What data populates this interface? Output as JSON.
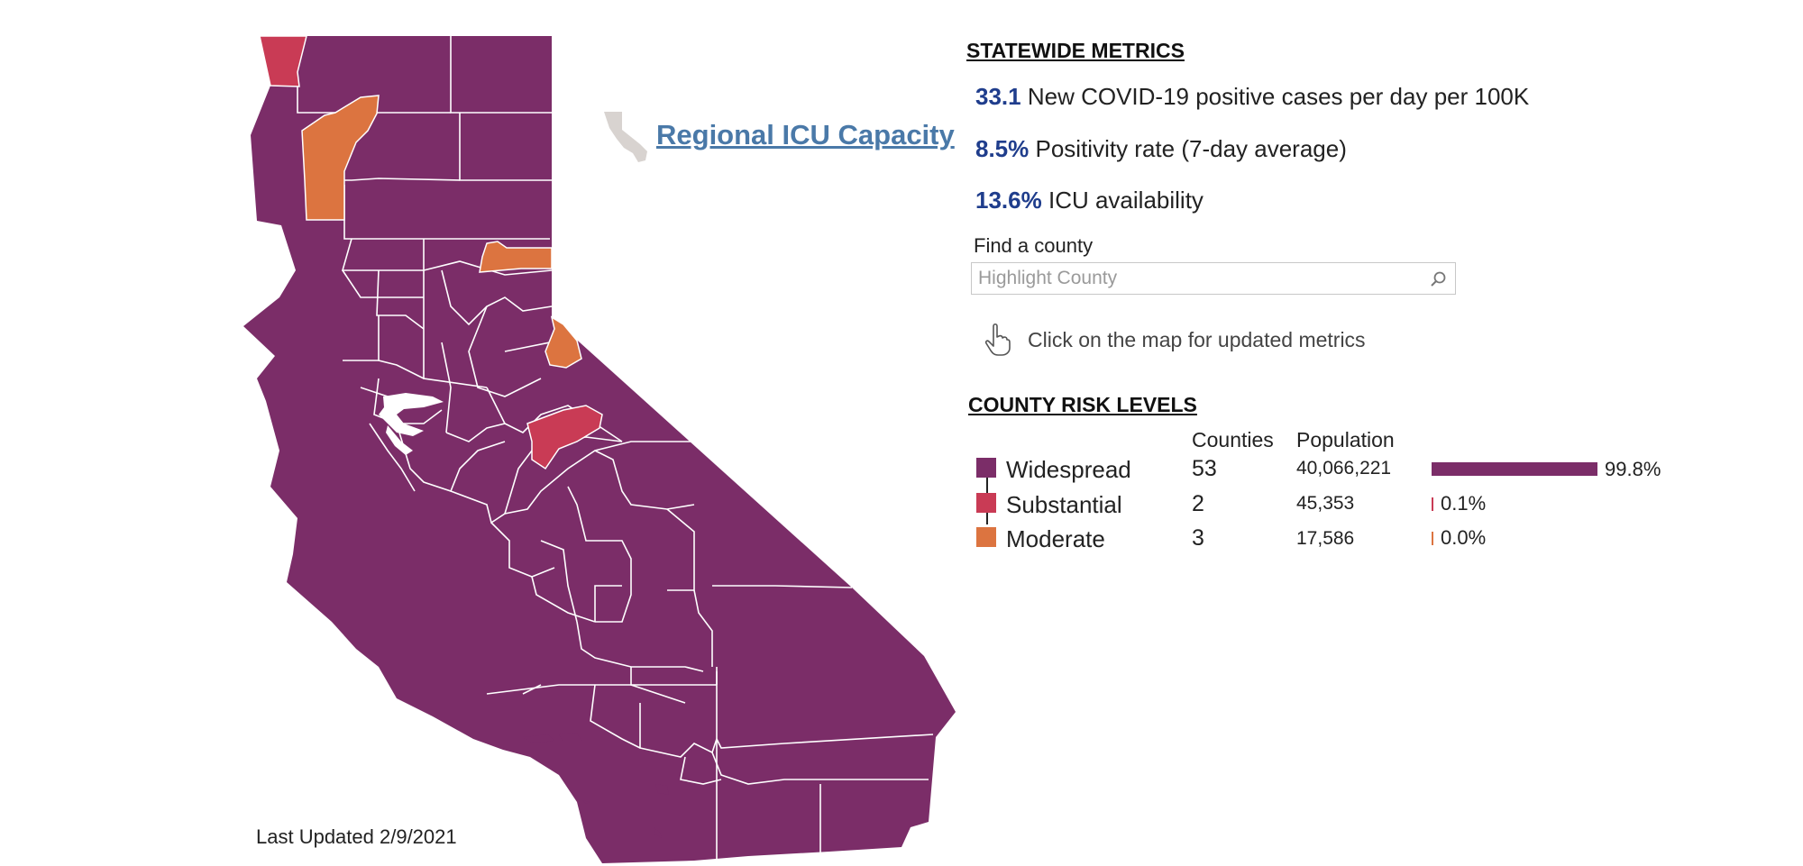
{
  "colors": {
    "widespread": "#7b2d68",
    "substantial": "#c93b55",
    "moderate": "#dc7440",
    "metric_value": "#1f3d8c",
    "link": "#4a79a8"
  },
  "regional_icu_link": "Regional ICU Capacity",
  "statewide": {
    "heading": "STATEWIDE METRICS",
    "metrics": [
      {
        "value": "33.1",
        "label": "New COVID-19 positive cases per day per 100K"
      },
      {
        "value": "8.5%",
        "label": "Positivity rate (7-day average)"
      },
      {
        "value": "13.6%",
        "label": "ICU availability"
      }
    ]
  },
  "find_county": {
    "label": "Find a county",
    "placeholder": "Highlight County",
    "search_icon": "search-icon"
  },
  "hint": {
    "icon": "pointer-hand-icon",
    "text": "Click on the map for updated metrics"
  },
  "risk_levels": {
    "heading": "COUNTY RISK LEVELS",
    "col_counties": "Counties",
    "col_population": "Population",
    "rows": [
      {
        "label": "Widespread",
        "counties": "53",
        "population": "40,066,221",
        "percent": "99.8%",
        "share": 0.998,
        "color": "#7b2d68"
      },
      {
        "label": "Substantial",
        "counties": "2",
        "population": "45,353",
        "percent": "0.1%",
        "share": 0.001,
        "color": "#c93b55"
      },
      {
        "label": "Moderate",
        "counties": "3",
        "population": "17,586",
        "percent": "0.0%",
        "share": 0.0,
        "color": "#dc7440"
      }
    ]
  },
  "last_updated": "Last Updated 2/9/2021"
}
